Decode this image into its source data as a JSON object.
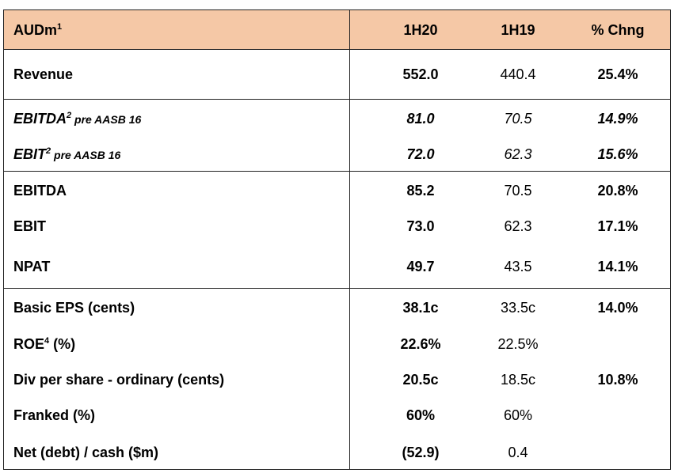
{
  "header": {
    "label": "AUDm",
    "label_sup": "1",
    "col1": "1H20",
    "col2": "1H19",
    "col3": "% Chng"
  },
  "rows": [
    {
      "label": "Revenue",
      "sup": "",
      "suffix": "",
      "v1": "552.0",
      "v2": "440.4",
      "v3": "25.4%"
    },
    {
      "label": "EBITDA",
      "sup": "2",
      "suffix": " pre AASB 16",
      "v1": "81.0",
      "v2": "70.5",
      "v3": "14.9%"
    },
    {
      "label": "EBIT",
      "sup": "2",
      "suffix": " pre AASB 16",
      "v1": "72.0",
      "v2": "62.3",
      "v3": "15.6%"
    },
    {
      "label": "EBITDA",
      "sup": "",
      "suffix": "",
      "v1": "85.2",
      "v2": "70.5",
      "v3": "20.8%"
    },
    {
      "label": "EBIT",
      "sup": "",
      "suffix": "",
      "v1": "73.0",
      "v2": "62.3",
      "v3": "17.1%"
    },
    {
      "label": "NPAT",
      "sup": "",
      "suffix": "",
      "v1": "49.7",
      "v2": "43.5",
      "v3": "14.1%"
    },
    {
      "label": "Basic EPS (cents)",
      "sup": "",
      "suffix": "",
      "v1": "38.1c",
      "v2": "33.5c",
      "v3": "14.0%"
    },
    {
      "label": "ROE",
      "sup": "4",
      "suffix": " (%)",
      "v1": "22.6%",
      "v2": "22.5%",
      "v3": ""
    },
    {
      "label": "Div per share - ordinary (cents)",
      "sup": "",
      "suffix": "",
      "v1": "20.5c",
      "v2": "18.5c",
      "v3": "10.8%"
    },
    {
      "label": "Franked (%)",
      "sup": "",
      "suffix": "",
      "v1": "60%",
      "v2": "60%",
      "v3": ""
    },
    {
      "label": "Net (debt) / cash ($m)",
      "sup": "",
      "suffix": "",
      "v1": "(52.9)",
      "v2": "0.4",
      "v3": ""
    }
  ]
}
